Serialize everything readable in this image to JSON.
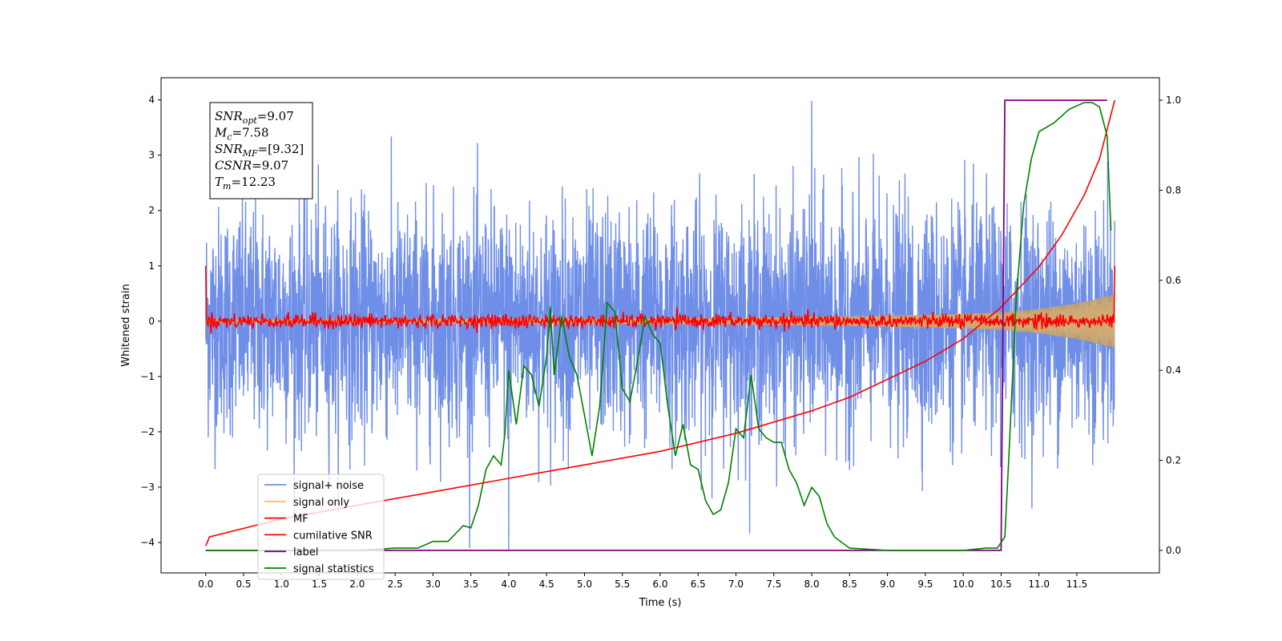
{
  "chart_data": {
    "type": "line",
    "title": "",
    "xlabel": "Time (s)",
    "ylabel": "Whitened strain",
    "y2label": "",
    "xlim": [
      -0.59,
      12.59
    ],
    "ylim": [
      -4.55,
      4.4
    ],
    "y2lim": [
      -0.05,
      1.05
    ],
    "x_ticks": [
      "0.0",
      "0.5",
      "1.0",
      "1.5",
      "2.0",
      "2.5",
      "3.0",
      "3.5",
      "4.0",
      "4.5",
      "5.0",
      "5.5",
      "6.0",
      "6.5",
      "7.0",
      "7.5",
      "8.0",
      "8.5",
      "9.0",
      "9.5",
      "10.0",
      "10.5",
      "11.0",
      "11.5"
    ],
    "y_ticks": [
      "4",
      "3",
      "2",
      "1",
      "0",
      "−1",
      "−2",
      "−3",
      "−4"
    ],
    "y2_ticks": [
      "1.0",
      "0.8",
      "0.6",
      "0.4",
      "0.2",
      "0.0"
    ],
    "legend_position": "lower-left",
    "colors": {
      "signal_noise": "#6f8ee8",
      "signal_only": "#f5c26b",
      "mf": "#ff0000",
      "cumulative_snr": "#ff0000",
      "label": "#800080",
      "signal_statistics": "#008000",
      "envelope": "#bf9f6e"
    },
    "series": [
      {
        "name": "signal+ noise",
        "axis": "left",
        "description_values": "dense gaussian noise, roughly symmetric, extremes about ±4",
        "x_range": [
          0.0,
          12.0
        ],
        "amplitude_extremes": [
          -4.15,
          3.98
        ]
      },
      {
        "name": "signal only",
        "axis": "left",
        "x": [
          0.0,
          7.0,
          8.0,
          9.0,
          10.0,
          10.5,
          11.0,
          11.5,
          12.0
        ],
        "amplitude": [
          0.03,
          0.06,
          0.08,
          0.1,
          0.13,
          0.16,
          0.22,
          0.32,
          0.48
        ]
      },
      {
        "name": "MF",
        "axis": "left",
        "x_range": [
          0.0,
          12.0
        ],
        "start_value": 1.0,
        "end_value": 1.0,
        "noise_amplitude": 0.22
      },
      {
        "name": "cumilative SNR",
        "axis": "right",
        "x": [
          0.0,
          0.05,
          1.0,
          2.0,
          3.0,
          4.0,
          5.0,
          6.0,
          7.0,
          8.0,
          8.5,
          9.0,
          9.5,
          10.0,
          10.5,
          11.0,
          11.3,
          11.6,
          11.8,
          12.0
        ],
        "values": [
          0.01,
          0.03,
          0.07,
          0.1,
          0.13,
          0.16,
          0.19,
          0.22,
          0.26,
          0.31,
          0.34,
          0.38,
          0.42,
          0.47,
          0.54,
          0.63,
          0.7,
          0.79,
          0.87,
          1.0
        ]
      },
      {
        "name": "label",
        "axis": "right",
        "x": [
          0.0,
          10.5,
          10.55,
          11.9
        ],
        "values": [
          0.0,
          0.0,
          1.0,
          1.0
        ]
      },
      {
        "name": "signal statistics",
        "axis": "right",
        "x": [
          0.0,
          0.5,
          1.0,
          1.5,
          2.0,
          2.5,
          2.8,
          3.0,
          3.2,
          3.4,
          3.5,
          3.6,
          3.7,
          3.8,
          3.9,
          3.95,
          4.0,
          4.1,
          4.2,
          4.3,
          4.4,
          4.5,
          4.55,
          4.6,
          4.7,
          4.8,
          4.9,
          5.0,
          5.1,
          5.2,
          5.3,
          5.4,
          5.5,
          5.6,
          5.7,
          5.8,
          5.9,
          6.0,
          6.1,
          6.2,
          6.3,
          6.4,
          6.5,
          6.6,
          6.7,
          6.8,
          6.9,
          7.0,
          7.1,
          7.2,
          7.3,
          7.4,
          7.5,
          7.6,
          7.7,
          7.8,
          7.9,
          8.0,
          8.1,
          8.2,
          8.3,
          8.5,
          9.0,
          9.5,
          10.0,
          10.3,
          10.45,
          10.55,
          10.6,
          10.7,
          10.8,
          10.9,
          11.0,
          11.2,
          11.4,
          11.6,
          11.7,
          11.8,
          11.9,
          11.95
        ],
        "values": [
          0.0,
          0.0,
          0.0,
          0.0,
          0.0,
          0.005,
          0.005,
          0.02,
          0.02,
          0.055,
          0.05,
          0.1,
          0.18,
          0.21,
          0.19,
          0.26,
          0.4,
          0.28,
          0.41,
          0.39,
          0.32,
          0.43,
          0.54,
          0.39,
          0.52,
          0.43,
          0.39,
          0.3,
          0.21,
          0.32,
          0.55,
          0.53,
          0.36,
          0.33,
          0.42,
          0.52,
          0.48,
          0.46,
          0.32,
          0.21,
          0.28,
          0.19,
          0.18,
          0.11,
          0.08,
          0.09,
          0.15,
          0.27,
          0.25,
          0.39,
          0.27,
          0.25,
          0.24,
          0.24,
          0.18,
          0.15,
          0.1,
          0.14,
          0.12,
          0.06,
          0.03,
          0.005,
          0.0,
          0.0,
          0.0,
          0.005,
          0.005,
          0.03,
          0.2,
          0.56,
          0.77,
          0.87,
          0.93,
          0.95,
          0.98,
          0.995,
          0.995,
          0.985,
          0.92,
          0.71
        ]
      }
    ],
    "legend": [
      "signal+ noise",
      "signal only",
      "MF",
      "cumilative SNR",
      "label",
      "signal statistics"
    ]
  },
  "stats_box": {
    "lines": [
      {
        "main": "SNR",
        "sub": "opt",
        "value": "=9.07"
      },
      {
        "main": "M",
        "sub": "c",
        "value": "=7.58"
      },
      {
        "main": "SNR",
        "sub": "MF",
        "value": "=[9.32]"
      },
      {
        "main": "CSNR",
        "sub": "",
        "value": "=9.07"
      },
      {
        "main": "T",
        "sub": "m",
        "value": "=12.23"
      }
    ]
  }
}
